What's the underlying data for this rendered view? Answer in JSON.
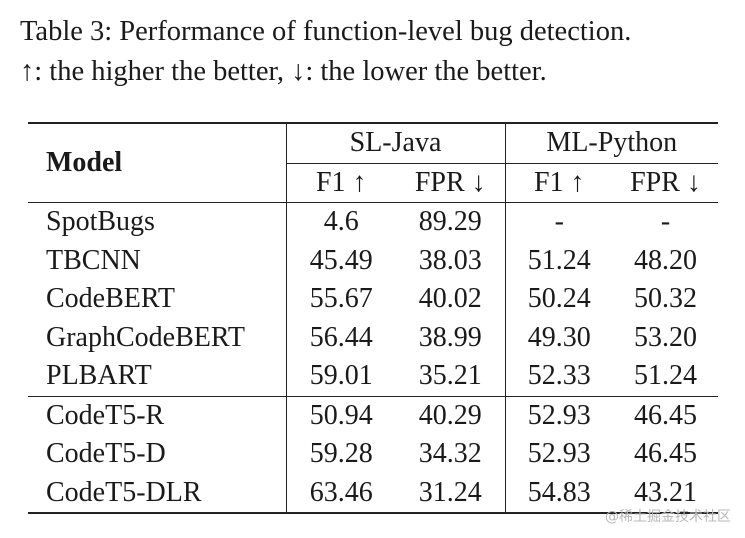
{
  "caption": {
    "line1": "Table 3:  Performance of function-level bug detection.",
    "line2": "↑: the higher the better, ↓: the lower the better."
  },
  "table": {
    "model_header": "Model",
    "groups": [
      "SL-Java",
      "ML-Python"
    ],
    "metrics": [
      "F1 ↑",
      "FPR ↓",
      "F1 ↑",
      "FPR ↓"
    ],
    "rows": [
      {
        "model": "SpotBugs",
        "values": [
          "4.6",
          "89.29",
          "-",
          "-"
        ]
      },
      {
        "model": "TBCNN",
        "values": [
          "45.49",
          "38.03",
          "51.24",
          "48.20"
        ]
      },
      {
        "model": "CodeBERT",
        "values": [
          "55.67",
          "40.02",
          "50.24",
          "50.32"
        ]
      },
      {
        "model": "GraphCodeBERT",
        "values": [
          "56.44",
          "38.99",
          "49.30",
          "53.20"
        ]
      },
      {
        "model": "PLBART",
        "values": [
          "59.01",
          "35.21",
          "52.33",
          "51.24"
        ]
      },
      {
        "model": "CodeT5-R",
        "values": [
          "50.94",
          "40.29",
          "52.93",
          "46.45"
        ]
      },
      {
        "model": "CodeT5-D",
        "values": [
          "59.28",
          "34.32",
          "52.93",
          "46.45"
        ]
      },
      {
        "model": "CodeT5-DLR",
        "values": [
          "63.46",
          "31.24",
          "54.83",
          "43.21"
        ],
        "bold": true
      }
    ]
  },
  "watermark": "@稀土掘金技术社区"
}
